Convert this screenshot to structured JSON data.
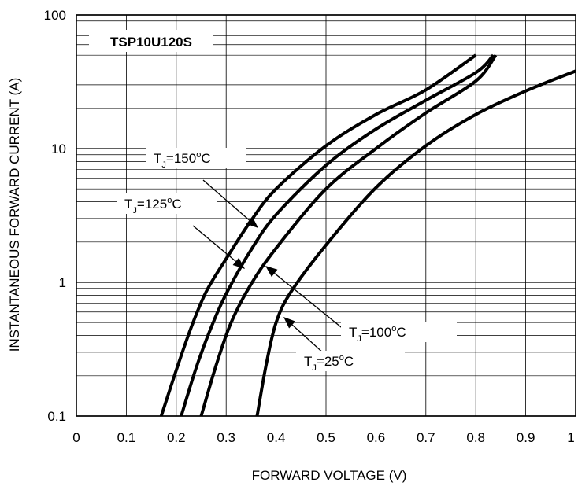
{
  "chart_data": {
    "type": "line",
    "title": "",
    "xlabel": "FORWARD VOLTAGE (V)",
    "ylabel": "INSTANTANEOUS FORWARD CURRENT (A)",
    "xlim": [
      0,
      1
    ],
    "ylim": [
      0.1,
      100
    ],
    "yscale": "log",
    "grid": true,
    "x_ticks": [
      "0",
      "0.1",
      "0.2",
      "0.3",
      "0.4",
      "0.5",
      "0.6",
      "0.7",
      "0.8",
      "0.9",
      "1"
    ],
    "y_ticks": [
      "0.1",
      "1",
      "10",
      "100"
    ],
    "device_label": "TSP10U120S",
    "series": [
      {
        "name": "T_J=150°C",
        "points": [
          [
            0.17,
            0.1
          ],
          [
            0.2,
            0.22
          ],
          [
            0.23,
            0.46
          ],
          [
            0.26,
            0.85
          ],
          [
            0.3,
            1.5
          ],
          [
            0.35,
            2.9
          ],
          [
            0.4,
            5.0
          ],
          [
            0.5,
            10.5
          ],
          [
            0.6,
            18.0
          ],
          [
            0.7,
            27.5
          ],
          [
            0.8,
            50.0
          ]
        ]
      },
      {
        "name": "T_J=125°C",
        "points": [
          [
            0.21,
            0.1
          ],
          [
            0.24,
            0.23
          ],
          [
            0.27,
            0.46
          ],
          [
            0.3,
            0.82
          ],
          [
            0.35,
            1.75
          ],
          [
            0.4,
            3.2
          ],
          [
            0.5,
            7.5
          ],
          [
            0.6,
            14.0
          ],
          [
            0.7,
            23.0
          ],
          [
            0.8,
            37.0
          ],
          [
            0.835,
            50.0
          ]
        ]
      },
      {
        "name": "T_J=100°C",
        "points": [
          [
            0.25,
            0.1
          ],
          [
            0.28,
            0.24
          ],
          [
            0.31,
            0.5
          ],
          [
            0.35,
            0.97
          ],
          [
            0.4,
            1.8
          ],
          [
            0.5,
            5.0
          ],
          [
            0.6,
            10.0
          ],
          [
            0.7,
            18.5
          ],
          [
            0.8,
            32.0
          ],
          [
            0.84,
            50.0
          ]
        ]
      },
      {
        "name": "T_J=25°C",
        "points": [
          [
            0.362,
            0.1
          ],
          [
            0.38,
            0.24
          ],
          [
            0.4,
            0.5
          ],
          [
            0.43,
            0.85
          ],
          [
            0.5,
            1.9
          ],
          [
            0.6,
            5.1
          ],
          [
            0.7,
            10.5
          ],
          [
            0.8,
            18.0
          ],
          [
            0.9,
            27.0
          ],
          [
            1.0,
            38.0
          ]
        ]
      }
    ],
    "annotations": [
      {
        "label": "T_J=150°C",
        "main": "T",
        "sub": "J",
        "rest": "=150",
        "sup": "o",
        "unit": "C"
      },
      {
        "label": "T_J=125°C",
        "main": "T",
        "sub": "J",
        "rest": "=125",
        "sup": "o",
        "unit": "C"
      },
      {
        "label": "T_J=100°C",
        "main": "T",
        "sub": "J",
        "rest": "=100",
        "sup": "o",
        "unit": "C"
      },
      {
        "label": "T_J=25°C",
        "main": "T",
        "sub": "J",
        "rest": "=25",
        "sup": "o",
        "unit": "C"
      }
    ]
  }
}
